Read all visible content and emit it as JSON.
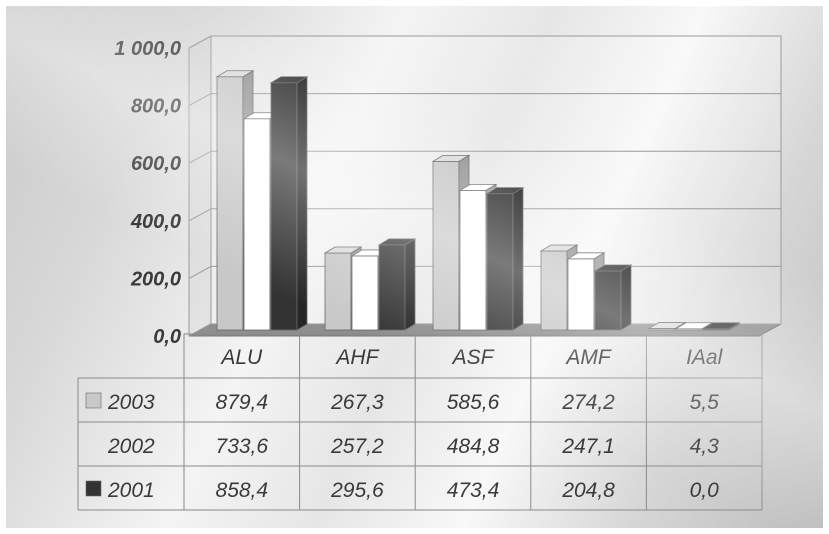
{
  "chart_data": {
    "type": "bar",
    "categories": [
      "ALU",
      "AHF",
      "ASF",
      "AMF",
      "IAal"
    ],
    "series": [
      {
        "name": "2003",
        "values": [
          879.4,
          267.3,
          585.6,
          274.2,
          5.5
        ],
        "color": "#c8c8c8"
      },
      {
        "name": "2002",
        "values": [
          733.6,
          257.2,
          484.8,
          247.1,
          4.3
        ],
        "color": "#ffffff"
      },
      {
        "name": "2001",
        "values": [
          858.4,
          295.6,
          473.4,
          204.8,
          0.0
        ],
        "color": "#333333"
      }
    ],
    "table_values": [
      [
        "879,4",
        "267,3",
        "585,6",
        "274,2",
        "5,5"
      ],
      [
        "733,6",
        "257,2",
        "484,8",
        "247,1",
        "4,3"
      ],
      [
        "858,4",
        "295,6",
        "473,4",
        "204,8",
        "0,0"
      ]
    ],
    "y_ticks": [
      "0,0",
      "200,0",
      "400,0",
      "600,0",
      "800,0",
      "1 000,0"
    ],
    "ylim": [
      0,
      1000
    ],
    "grid": true,
    "legend": "data table, left",
    "title": "",
    "xlabel": "",
    "ylabel": ""
  }
}
